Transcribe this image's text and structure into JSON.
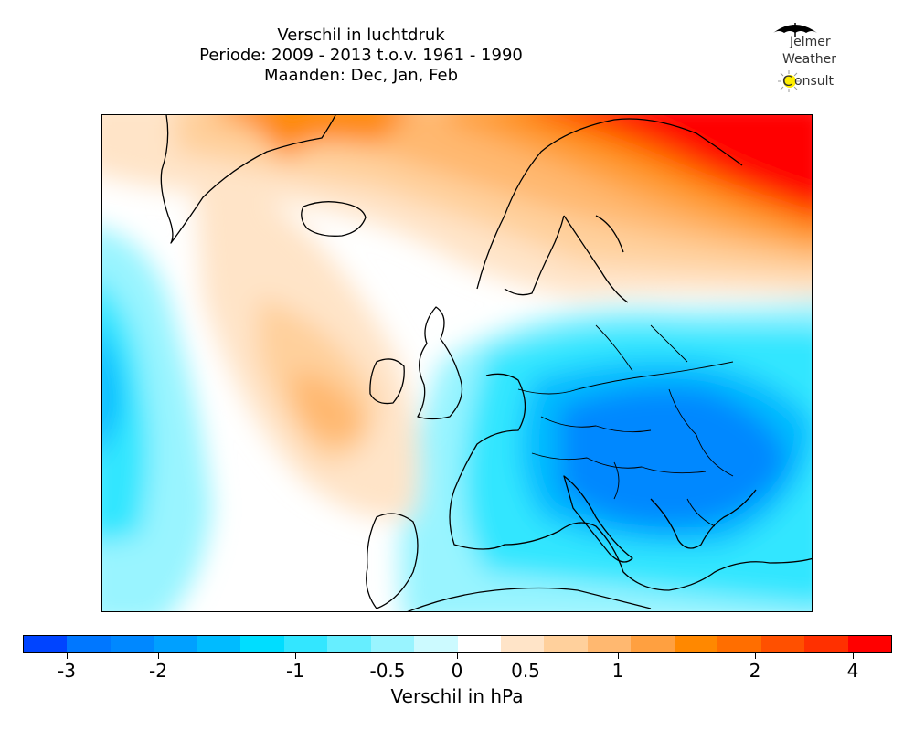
{
  "title": {
    "line1": "Verschil in luchtdruk",
    "line2": "Periode: 2009 - 2013 t.o.v. 1961 - 1990",
    "line3": "Maanden: Dec, Jan, Feb"
  },
  "logo": {
    "line1": "Jelmer",
    "line2": "Weather",
    "line3_initial": "C",
    "line3_rest": "onsult",
    "umbrella_color": "#000000",
    "sun_color": "#ffee00"
  },
  "colorbar": {
    "label": "Verschil in hPa",
    "colors": [
      "#0044ff",
      "#0077ff",
      "#0088ff",
      "#00a0ff",
      "#00bbff",
      "#00ddff",
      "#33e6ff",
      "#66eeff",
      "#99f4ff",
      "#ccfaff",
      "#ffffff",
      "#ffe4c8",
      "#ffd09c",
      "#ffb870",
      "#ffa040",
      "#ff8800",
      "#ff6e00",
      "#ff5000",
      "#ff3000",
      "#ff0000"
    ],
    "ticks": [
      {
        "label": "-3",
        "value": -3
      },
      {
        "label": "-2",
        "value": -2
      },
      {
        "label": "-1",
        "value": -1
      },
      {
        "label": "-0.5",
        "value": -0.5
      },
      {
        "label": "0",
        "value": 0
      },
      {
        "label": "0.5",
        "value": 0.5
      },
      {
        "label": "1",
        "value": 1
      },
      {
        "label": "2",
        "value": 2
      },
      {
        "label": "4",
        "value": 4
      }
    ]
  },
  "map": {
    "region": "Europe / North Atlantic",
    "features": [
      {
        "name": "arctic-high-anomaly",
        "level": "4"
      },
      {
        "name": "greenland-positive",
        "level": "1"
      },
      {
        "name": "atlantic-positive",
        "level": "0.5"
      },
      {
        "name": "west-atlantic-negative",
        "level": "-1"
      },
      {
        "name": "central-europe-negative",
        "level": "-2"
      },
      {
        "name": "mediterranean-negative",
        "level": "-1"
      }
    ]
  }
}
